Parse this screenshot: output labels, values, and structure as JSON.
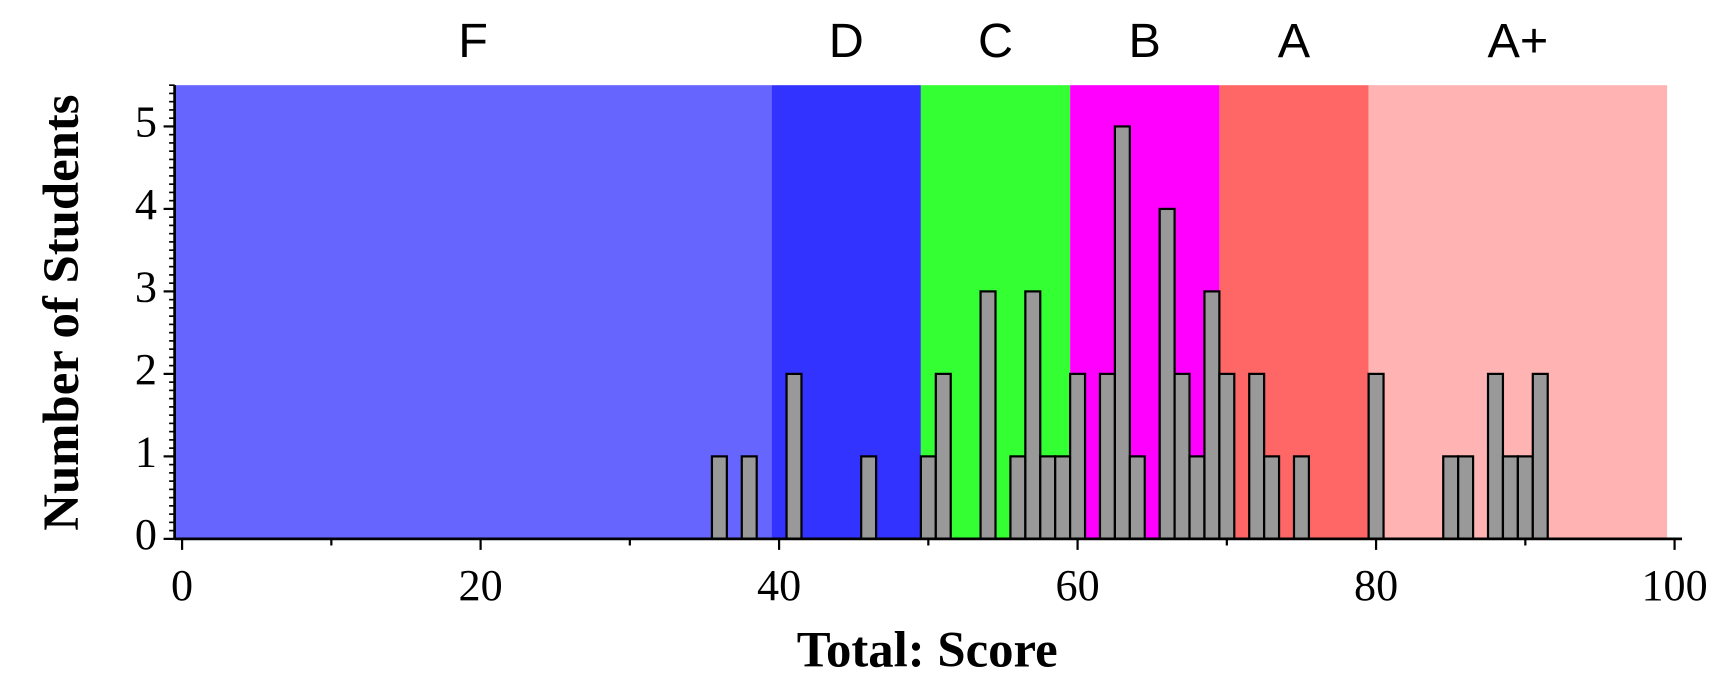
{
  "chart_data": {
    "type": "histogram",
    "xlabel": "Total: Score",
    "ylabel": "Number of Students",
    "bins": [
      35.5,
      36.5,
      37.5,
      38.5,
      39.5,
      40.5,
      41.5,
      42.5,
      43.5,
      44.5,
      45.5,
      46.5,
      47.5,
      48.5,
      49.5,
      50.5,
      51.5,
      52.5,
      53.5,
      54.5,
      55.5,
      56.5,
      57.5,
      58.5,
      59.5,
      60.5,
      61.5,
      62.5,
      63.5,
      64.5,
      65.5,
      66.5,
      67.5,
      68.5,
      69.5,
      70.5,
      71.5,
      72.5,
      73.5,
      74.5,
      75.5,
      76.5,
      77.5,
      78.5,
      79.5,
      80.5,
      81.5,
      82.5,
      83.5,
      84.5,
      85.5,
      86.5,
      87.5,
      88.5,
      89.5,
      90.5,
      91.5
    ],
    "values": [
      1,
      0,
      1,
      0,
      0,
      2,
      0,
      0,
      0,
      0,
      1,
      0,
      0,
      0,
      1,
      2,
      0,
      0,
      3,
      0,
      1,
      3,
      1,
      1,
      2,
      0,
      2,
      5,
      1,
      0,
      4,
      2,
      1,
      3,
      2,
      0,
      2,
      1,
      0,
      1,
      0,
      0,
      0,
      0,
      2,
      0,
      0,
      0,
      0,
      1,
      1,
      0,
      2,
      1,
      1,
      2
    ],
    "color": "#999999",
    "bands": [
      {
        "label": "F",
        "from": -0.5,
        "to": 39.5,
        "color": "#6666ff"
      },
      {
        "label": "D",
        "from": 39.5,
        "to": 49.5,
        "color": "#3333ff"
      },
      {
        "label": "C",
        "from": 49.5,
        "to": 59.5,
        "color": "#33ff33"
      },
      {
        "label": "B",
        "from": 59.5,
        "to": 69.5,
        "color": "#ff00ff"
      },
      {
        "label": "A",
        "from": 69.5,
        "to": 79.5,
        "color": "#ff6666"
      },
      {
        "label": "A+",
        "from": 79.5,
        "to": 99.5,
        "color": "#ffb3b3"
      }
    ],
    "xlim": [
      -0.5,
      100.5
    ],
    "ylim": [
      0,
      5.5
    ],
    "xticks": [
      0,
      20,
      40,
      60,
      80,
      100
    ],
    "yticks": [
      0,
      1,
      2,
      3,
      4,
      5
    ]
  }
}
